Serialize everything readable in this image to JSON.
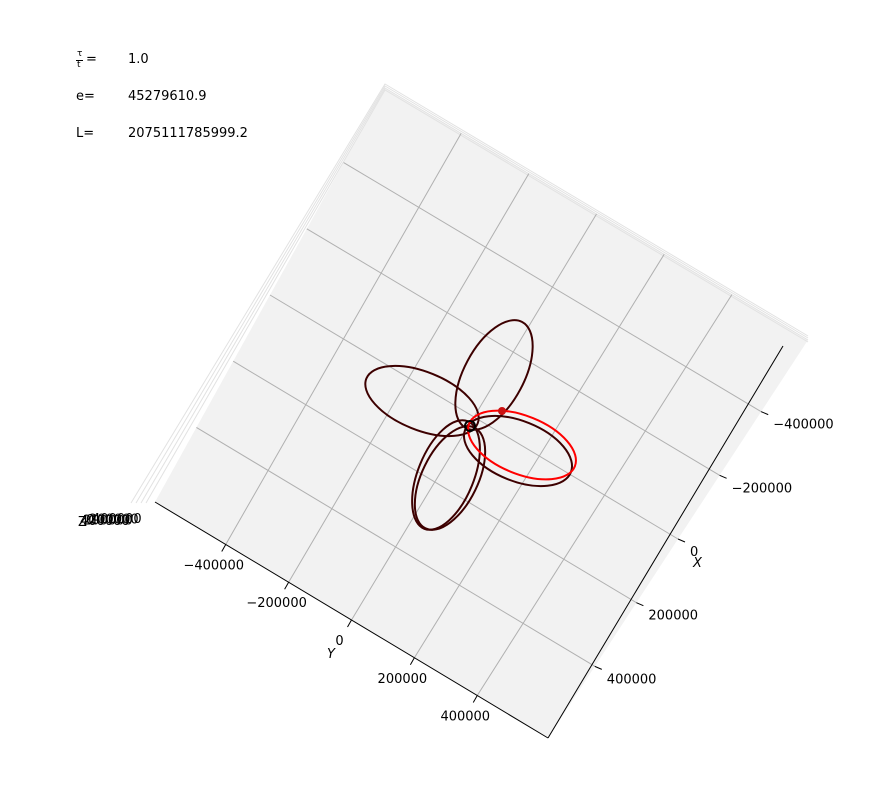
{
  "chart_data": {
    "type": "line",
    "projection": "3d",
    "annotations": {
      "tau_label": "=",
      "tau_value": "1.0",
      "e_label": "e=",
      "e_value": "45279610.9",
      "L_label": "L=",
      "L_value": "2075111785999.2"
    },
    "axes": {
      "x": {
        "label": "X",
        "ticks": [
          "−400000",
          "−200000",
          "0",
          "200000",
          "400000"
        ]
      },
      "y": {
        "label": "Y",
        "ticks": [
          "−400000",
          "−200000",
          "0",
          "200000",
          "400000"
        ]
      },
      "z": {
        "label": "Z",
        "ticks": [
          "−400000",
          "−200000",
          "0",
          "200000",
          "400000"
        ]
      }
    },
    "grid": true,
    "series": [
      {
        "color": "#3d0000",
        "kind": "orbit-loops",
        "petals": 4
      },
      {
        "color": "#ff0000",
        "kind": "current-orbit"
      }
    ],
    "markers": [
      {
        "kind": "central-body",
        "color": "#000000",
        "style": "ring"
      },
      {
        "kind": "orbiting-body",
        "color": "#cc1111",
        "style": "dot"
      }
    ]
  }
}
